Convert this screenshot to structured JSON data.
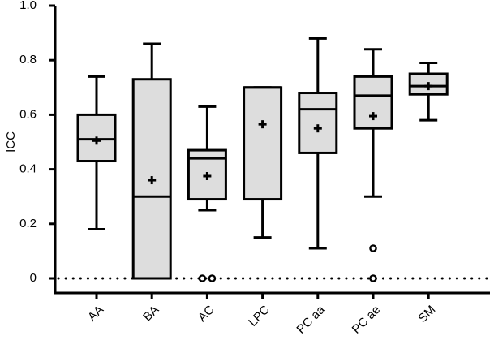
{
  "chart_data": {
    "type": "box",
    "title": "",
    "xlabel": "",
    "ylabel": "ICC",
    "ylim": [
      0,
      1.0
    ],
    "yticks": [
      {
        "value": 0,
        "label": "0"
      },
      {
        "value": 0.2,
        "label": "0.2"
      },
      {
        "value": 0.4,
        "label": "0.4"
      },
      {
        "value": 0.6,
        "label": "0.6"
      },
      {
        "value": 0.8,
        "label": "0.8"
      },
      {
        "value": 1.0,
        "label": "1.0"
      }
    ],
    "reference_line": {
      "value": 0,
      "style": "dotted"
    },
    "box_color": "#dddddd",
    "series": [
      {
        "name": "AA",
        "whisker_low": 0.18,
        "q1": 0.43,
        "median": 0.51,
        "q3": 0.6,
        "whisker_high": 0.74,
        "mean": 0.505,
        "outliers": []
      },
      {
        "name": "BA",
        "whisker_low": 0.0,
        "q1": 0.0,
        "median": 0.3,
        "q3": 0.73,
        "whisker_high": 0.86,
        "mean": 0.36,
        "outliers": []
      },
      {
        "name": "AC",
        "whisker_low": 0.25,
        "q1": 0.29,
        "median": 0.44,
        "q3": 0.47,
        "whisker_high": 0.63,
        "mean": 0.375,
        "outliers": [
          0.0,
          0.0
        ]
      },
      {
        "name": "LPC",
        "whisker_low": 0.15,
        "q1": 0.29,
        "median": 0.7,
        "q3": 0.7,
        "whisker_high": 0.7,
        "mean": 0.565,
        "outliers": []
      },
      {
        "name": "PC aa",
        "whisker_low": 0.11,
        "q1": 0.46,
        "median": 0.62,
        "q3": 0.68,
        "whisker_high": 0.88,
        "mean": 0.55,
        "outliers": []
      },
      {
        "name": "PC ae",
        "whisker_low": 0.3,
        "q1": 0.55,
        "median": 0.67,
        "q3": 0.74,
        "whisker_high": 0.84,
        "mean": 0.595,
        "outliers": [
          0.11,
          0.0
        ]
      },
      {
        "name": "SM",
        "whisker_low": 0.58,
        "q1": 0.675,
        "median": 0.705,
        "q3": 0.75,
        "whisker_high": 0.79,
        "mean": 0.705,
        "outliers": []
      }
    ]
  }
}
